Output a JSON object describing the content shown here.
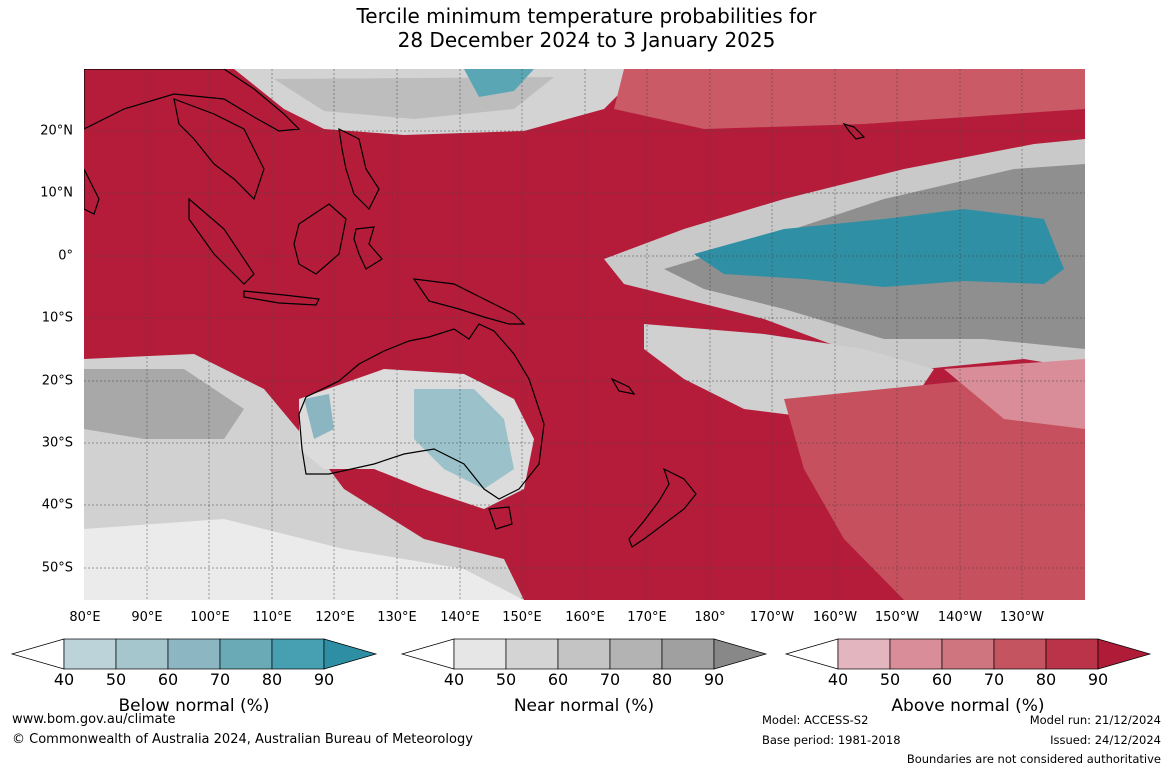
{
  "title_line1": "Tercile minimum temperature probabilities for",
  "title_line2": "28 December 2024 to 3 January 2025",
  "lat_labels": [
    "20°N",
    "10°N",
    "0°",
    "10°S",
    "20°S",
    "30°S",
    "40°S",
    "50°S"
  ],
  "lon_labels": [
    "80°E",
    "90°E",
    "100°E",
    "110°E",
    "120°E",
    "130°E",
    "140°E",
    "150°E",
    "160°E",
    "170°E",
    "180°",
    "170°W",
    "160°W",
    "150°W",
    "140°W",
    "130°W"
  ],
  "legends": [
    {
      "title": "Below normal (%)",
      "ticks": [
        "40",
        "50",
        "60",
        "70",
        "80",
        "90"
      ],
      "colors": [
        "#ffffff",
        "#bcd3d9",
        "#a5c6cc",
        "#8cb6c1",
        "#6aaab7",
        "#47a0b2",
        "#2e8fa4"
      ]
    },
    {
      "title": "Near normal (%)",
      "ticks": [
        "40",
        "50",
        "60",
        "70",
        "80",
        "90"
      ],
      "colors": [
        "#ffffff",
        "#e6e6e6",
        "#d4d4d4",
        "#c4c4c4",
        "#b3b3b3",
        "#a0a0a0",
        "#888888"
      ]
    },
    {
      "title": "Above normal (%)",
      "ticks": [
        "40",
        "50",
        "60",
        "70",
        "80",
        "90"
      ],
      "colors": [
        "#ffffff",
        "#e3b5bf",
        "#d98d98",
        "#cf7580",
        "#c45460",
        "#bb3348",
        "#b01b38"
      ]
    }
  ],
  "footer": {
    "url": "www.bom.gov.au/climate",
    "copyright": "© Commonwealth of Australia 2024, Australian Bureau of Meteorology",
    "model": "Model: ACCESS-S2",
    "base_period": "Base period: 1981-2018",
    "model_run": "Model run: 21/12/2024",
    "issued": "Issued: 24/12/2024",
    "disclaimer": "Boundaries are not considered authoritative"
  }
}
